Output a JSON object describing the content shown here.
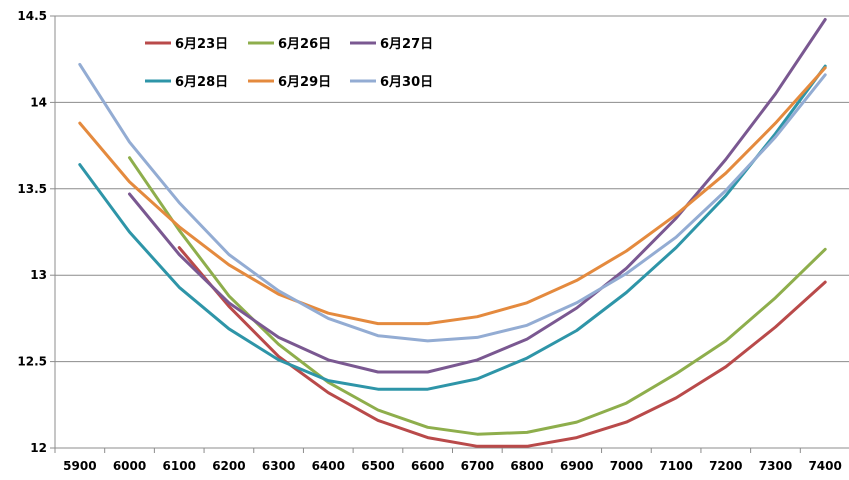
{
  "chart_data": {
    "type": "line",
    "x": [
      5900,
      6000,
      6100,
      6200,
      6300,
      6400,
      6500,
      6600,
      6700,
      6800,
      6900,
      7000,
      7100,
      7200,
      7300,
      7400
    ],
    "ylim": [
      12,
      14.5
    ],
    "y_ticks": [
      12,
      12.5,
      13,
      13.5,
      14,
      14.5
    ],
    "y_tick_labels": [
      "12",
      "12.5",
      "13",
      "13.5",
      "14",
      "14.5"
    ],
    "grid": {
      "horizontal": true,
      "vertical": false
    },
    "legend_position": "top-left",
    "series": [
      {
        "name": "6月23日",
        "color": "#b94a4a",
        "values": [
          null,
          null,
          13.16,
          12.82,
          12.53,
          12.32,
          12.16,
          12.06,
          12.01,
          12.01,
          12.06,
          12.15,
          12.29,
          12.47,
          12.7,
          12.96
        ]
      },
      {
        "name": "6月26日",
        "color": "#8eae4c",
        "values": [
          null,
          13.68,
          13.26,
          12.88,
          12.6,
          12.38,
          12.22,
          12.12,
          12.08,
          12.09,
          12.15,
          12.26,
          12.43,
          12.62,
          12.87,
          13.15
        ]
      },
      {
        "name": "6月27日",
        "color": "#7a5891",
        "values": [
          null,
          13.47,
          13.12,
          12.84,
          12.64,
          12.51,
          12.44,
          12.44,
          12.51,
          12.63,
          12.81,
          13.04,
          13.33,
          13.67,
          14.05,
          14.48
        ]
      },
      {
        "name": "6月28日",
        "color": "#2e95a8",
        "values": [
          13.64,
          13.25,
          12.93,
          12.69,
          12.51,
          12.39,
          12.34,
          12.34,
          12.4,
          12.52,
          12.68,
          12.9,
          13.16,
          13.46,
          13.82,
          14.21
        ]
      },
      {
        "name": "6月29日",
        "color": "#e48a3e",
        "values": [
          13.88,
          13.54,
          13.28,
          13.06,
          12.89,
          12.78,
          12.72,
          12.72,
          12.76,
          12.84,
          12.97,
          13.14,
          13.35,
          13.59,
          13.88,
          14.2
        ]
      },
      {
        "name": "6月30日",
        "color": "#93acd3",
        "values": [
          14.22,
          13.77,
          13.42,
          13.12,
          12.91,
          12.75,
          12.65,
          12.62,
          12.64,
          12.71,
          12.84,
          13.01,
          13.22,
          13.49,
          13.8,
          14.16
        ]
      }
    ]
  }
}
